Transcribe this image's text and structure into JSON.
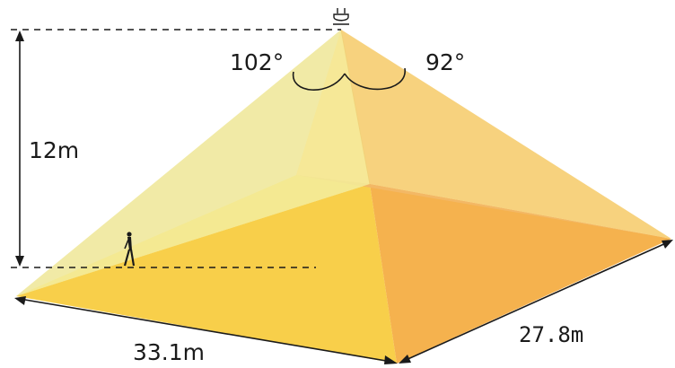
{
  "diagram": {
    "mounting_height": "12m",
    "angle_left": "102°",
    "angle_right": "92°",
    "width": "33.1m",
    "depth": "27.8m",
    "icons": {
      "fixture": "ceiling-sensor-icon",
      "person": "walking-person-icon"
    },
    "colors": {
      "pale_yellow": "#f2ea9a",
      "light_orange": "#f6cf72",
      "floor_left": "#f8d24e",
      "floor_right": "#f5b24e",
      "floor_front": "#f7c94c",
      "floor_far": "#f3b865",
      "lines": "#1a1a1a"
    }
  }
}
